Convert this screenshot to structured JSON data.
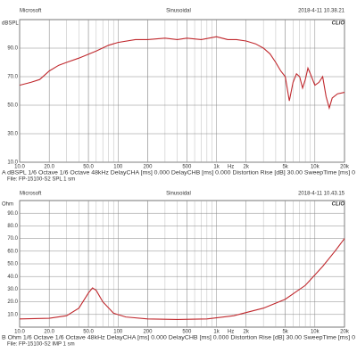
{
  "chart_data": [
    {
      "type": "line",
      "app": "Microsoft",
      "mode": "Sinusoidal",
      "timestamp": "2018-4-11 10.38.21",
      "brand": "CLIO",
      "y_label": "dBSPL",
      "x_unit": "Hz",
      "log_x": true,
      "log_grid": true,
      "grid": true,
      "xlim": [
        10,
        20000
      ],
      "xticks": [
        {
          "value": 10,
          "label": "10.0"
        },
        {
          "value": 20,
          "label": "20.0"
        },
        {
          "value": 50,
          "label": "50.0"
        },
        100,
        200,
        500,
        {
          "value": 1000,
          "label": "1k"
        },
        {
          "value": 2000,
          "label": "2k"
        },
        {
          "value": 5000,
          "label": "5k"
        },
        {
          "value": 10000,
          "label": "10k"
        },
        {
          "value": 20000,
          "label": "20k"
        }
      ],
      "ylim": [
        10,
        110
      ],
      "yticks": [
        {
          "value": 10,
          "label": "10.0"
        },
        {
          "value": 30,
          "label": "30.0"
        },
        {
          "value": 50,
          "label": "50.0"
        },
        {
          "value": 70,
          "label": "70.0"
        },
        {
          "value": 90,
          "label": "90.0"
        }
      ],
      "footer": "A  dBSPL   1/6 Octave   1/6 Octave  48kHz  DelayCHA [ms] 0.000   DelayCHB [ms] 0.000   Distortion Rise [dB] 30.00   SweepTime [ms] 0",
      "file": "File: FP-15100-S2 SPL 1 sm",
      "series": [
        {
          "color": "#c0282d",
          "x": [
            10,
            13,
            16,
            20,
            25,
            30,
            40,
            60,
            80,
            100,
            150,
            200,
            300,
            400,
            500,
            700,
            1000,
            1300,
            1600,
            2000,
            2500,
            3000,
            3500,
            4000,
            4500,
            5000,
            5500,
            6000,
            6500,
            7000,
            7500,
            8000,
            8500,
            9000,
            10000,
            11000,
            12000,
            13000,
            14000,
            15000,
            17000,
            20000
          ],
          "values": [
            64,
            66,
            68,
            74,
            78,
            80,
            83,
            88,
            92,
            94,
            96,
            96,
            97,
            96,
            97,
            96,
            98,
            96,
            96,
            95,
            93,
            90,
            86,
            80,
            74,
            70,
            53,
            66,
            72,
            70,
            62,
            68,
            76,
            72,
            64,
            66,
            70,
            56,
            48,
            55,
            58,
            59
          ]
        }
      ]
    },
    {
      "type": "line",
      "app": "Microsoft",
      "mode": "Sinusoidal",
      "timestamp": "2018-4-11 10.43.15",
      "brand": "CLIO",
      "y_label": "Ohm",
      "x_unit": "Hz",
      "log_x": true,
      "log_grid": true,
      "grid": true,
      "xlim": [
        10,
        20000
      ],
      "xticks": [
        {
          "value": 10,
          "label": "10.0"
        },
        {
          "value": 20,
          "label": "20.0"
        },
        {
          "value": 50,
          "label": "50.0"
        },
        100,
        200,
        500,
        {
          "value": 1000,
          "label": "1k"
        },
        {
          "value": 2000,
          "label": "2k"
        },
        {
          "value": 5000,
          "label": "5k"
        },
        {
          "value": 10000,
          "label": "10k"
        },
        {
          "value": 20000,
          "label": "20k"
        }
      ],
      "ylim": [
        0,
        100
      ],
      "yticks": [
        {
          "value": 10,
          "label": "10.0"
        },
        {
          "value": 20,
          "label": "20.0"
        },
        {
          "value": 30,
          "label": "30.0"
        },
        {
          "value": 40,
          "label": "40.0"
        },
        {
          "value": 50,
          "label": "50.0"
        },
        {
          "value": 60,
          "label": "60.0"
        },
        {
          "value": 70,
          "label": "70.0"
        },
        {
          "value": 80,
          "label": "80.0"
        },
        {
          "value": 90,
          "label": "90.0"
        }
      ],
      "footer": "B  Ohm   1/6 Octave   1/6 Octave  48kHz  DelayCHA [ms] 0.000   DelayCHB [ms] 0.000   Distortion Rise [dB] 30.00   SweepTime [ms] 0",
      "file": "File: FP-15100-S2 IMP 1 sm",
      "series": [
        {
          "color": "#c0282d",
          "x": [
            10,
            20,
            30,
            40,
            50,
            55,
            60,
            70,
            90,
            120,
            200,
            400,
            800,
            1500,
            3000,
            5000,
            8000,
            12000,
            16000,
            20000
          ],
          "values": [
            6.5,
            7,
            9,
            15,
            27,
            31,
            29,
            20,
            11,
            8,
            6.5,
            6,
            6.5,
            9,
            15,
            22,
            33,
            48,
            60,
            70
          ]
        }
      ]
    }
  ]
}
